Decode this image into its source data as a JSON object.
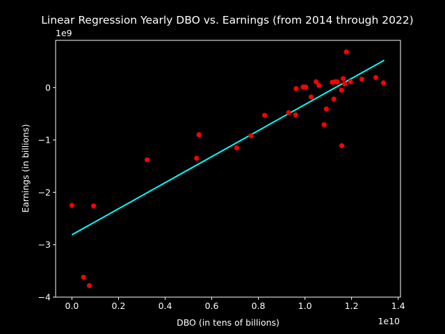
{
  "chart_data": {
    "type": "scatter",
    "title": "Linear Regression Yearly DBO vs. Earnings (from 2014 through 2022)",
    "xlabel": "DBO (in tens of billions)",
    "ylabel": "Earnings (in billions)",
    "x_offset_label": "1e10",
    "y_offset_label": "1e9",
    "xlim": [
      -0.07,
      1.41
    ],
    "ylim": [
      -4,
      0.9
    ],
    "x_ticks": [
      0.0,
      0.2,
      0.4,
      0.6,
      0.8,
      1.0,
      1.2,
      1.4
    ],
    "x_tick_labels": [
      "0.0",
      "0.2",
      "0.4",
      "0.6",
      "0.8",
      "1.0",
      "1.2",
      "1.4"
    ],
    "y_ticks": [
      -4,
      -3,
      -2,
      -1,
      0
    ],
    "y_tick_labels": [
      "−4",
      "−3",
      "−2",
      "−1",
      "0"
    ],
    "grid": false,
    "colors": {
      "background": "#000000",
      "points": "#ff0000",
      "line": "#00ffff",
      "text": "#ffffff"
    },
    "series": [
      {
        "kind": "points",
        "x": [
          0.0,
          0.05,
          0.075,
          0.093,
          0.323,
          0.535,
          0.545,
          0.707,
          0.768,
          0.827,
          0.93,
          0.96,
          0.962,
          0.992,
          1.003,
          1.027,
          1.048,
          1.06,
          1.082,
          1.092,
          1.117,
          1.124,
          1.13,
          1.138,
          1.157,
          1.158,
          1.164,
          1.17,
          1.178,
          1.195,
          1.244,
          1.304,
          1.337
        ],
        "y": [
          -2.25,
          -3.62,
          -3.78,
          -2.26,
          -1.38,
          -1.35,
          -0.9,
          -1.15,
          -0.92,
          -0.53,
          -0.48,
          -0.52,
          -0.02,
          0.01,
          0.01,
          -0.18,
          0.11,
          0.04,
          -0.71,
          -0.41,
          0.1,
          -0.22,
          0.11,
          0.11,
          -0.05,
          -1.11,
          0.17,
          0.07,
          0.68,
          0.11,
          0.16,
          0.19,
          0.09
        ]
      },
      {
        "kind": "line",
        "x": [
          0.0,
          1.34
        ],
        "y": [
          -2.81,
          0.52
        ]
      }
    ]
  }
}
